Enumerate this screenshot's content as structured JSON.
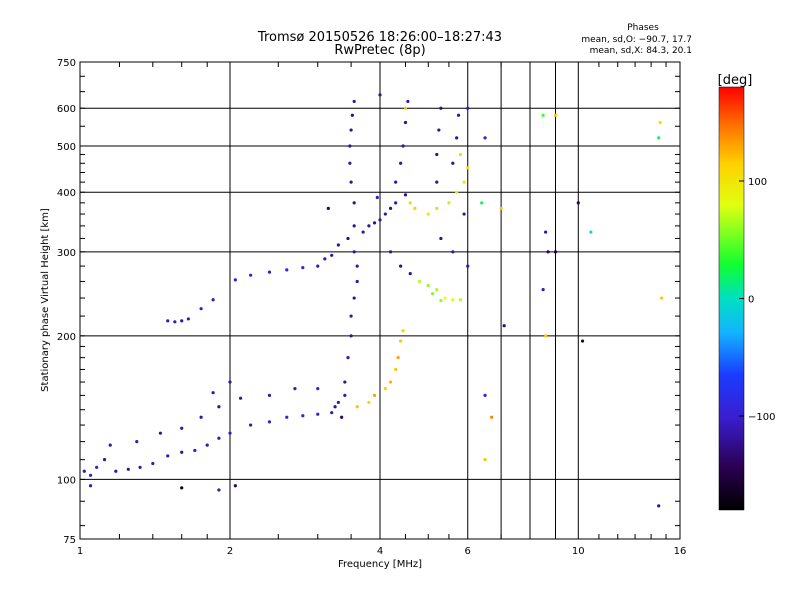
{
  "title_line1": "Tromsø 20150526 18:26:00–18:27:43",
  "title_line2": "RwPretec (8p)",
  "stats": {
    "heading": "Phases",
    "line_o": "mean, sd,O: −90.7, 17.7",
    "line_x": "mean, sd,X:  84.3, 20.1"
  },
  "colorbar": {
    "unit": "[deg]",
    "range": [
      -180,
      180
    ],
    "ticks": [
      {
        "value": 100,
        "label": "100"
      },
      {
        "value": 0,
        "label": "0"
      },
      {
        "value": -100,
        "label": "−100"
      }
    ]
  },
  "chart_data": {
    "type": "scatter",
    "xlabel": "Frequency [MHz]",
    "ylabel": "Stationary phase Virtual Height [km]",
    "xscale": "log",
    "yscale": "log",
    "xlim": [
      1,
      16
    ],
    "ylim": [
      75,
      750
    ],
    "grid": true,
    "color_encoding": "phase (deg)",
    "x_ticks": [
      {
        "value": 1,
        "label": "1"
      },
      {
        "value": 2,
        "label": "2"
      },
      {
        "value": 4,
        "label": "4"
      },
      {
        "value": 6,
        "label": "6"
      },
      {
        "value": 10,
        "label": "10"
      },
      {
        "value": 16,
        "label": "16"
      }
    ],
    "y_ticks": [
      {
        "value": 75,
        "label": "75"
      },
      {
        "value": 100,
        "label": "100"
      },
      {
        "value": 200,
        "label": "200"
      },
      {
        "value": 300,
        "label": "300"
      },
      {
        "value": 400,
        "label": "400"
      },
      {
        "value": 500,
        "label": "500"
      },
      {
        "value": 600,
        "label": "600"
      },
      {
        "value": 750,
        "label": "750"
      }
    ],
    "points": [
      {
        "x": 1.02,
        "y": 104,
        "p": -110
      },
      {
        "x": 1.05,
        "y": 102,
        "p": -105
      },
      {
        "x": 1.08,
        "y": 106,
        "p": -100
      },
      {
        "x": 1.12,
        "y": 110,
        "p": -120
      },
      {
        "x": 1.18,
        "y": 104,
        "p": -115
      },
      {
        "x": 1.25,
        "y": 105,
        "p": -118
      },
      {
        "x": 1.32,
        "y": 106,
        "p": -112
      },
      {
        "x": 1.4,
        "y": 108,
        "p": -110
      },
      {
        "x": 1.5,
        "y": 112,
        "p": -115
      },
      {
        "x": 1.6,
        "y": 114,
        "p": -120
      },
      {
        "x": 1.7,
        "y": 115,
        "p": -105
      },
      {
        "x": 1.8,
        "y": 118,
        "p": -110
      },
      {
        "x": 1.9,
        "y": 122,
        "p": -112
      },
      {
        "x": 2.0,
        "y": 125,
        "p": -110
      },
      {
        "x": 2.2,
        "y": 130,
        "p": -115
      },
      {
        "x": 2.4,
        "y": 132,
        "p": -100
      },
      {
        "x": 2.6,
        "y": 135,
        "p": -95
      },
      {
        "x": 2.8,
        "y": 136,
        "p": -98
      },
      {
        "x": 3.0,
        "y": 137,
        "p": -100
      },
      {
        "x": 3.2,
        "y": 138,
        "p": -110
      },
      {
        "x": 1.15,
        "y": 118,
        "p": -115
      },
      {
        "x": 1.3,
        "y": 120,
        "p": -110
      },
      {
        "x": 1.45,
        "y": 125,
        "p": -120
      },
      {
        "x": 1.6,
        "y": 128,
        "p": -115
      },
      {
        "x": 1.75,
        "y": 135,
        "p": -118
      },
      {
        "x": 1.9,
        "y": 142,
        "p": -120
      },
      {
        "x": 2.1,
        "y": 148,
        "p": -112
      },
      {
        "x": 2.4,
        "y": 150,
        "p": -110
      },
      {
        "x": 2.7,
        "y": 155,
        "p": -105
      },
      {
        "x": 3.0,
        "y": 155,
        "p": -100
      },
      {
        "x": 1.85,
        "y": 152,
        "p": -115
      },
      {
        "x": 2.0,
        "y": 160,
        "p": -118
      },
      {
        "x": 1.5,
        "y": 215,
        "p": -110
      },
      {
        "x": 1.55,
        "y": 214,
        "p": -112
      },
      {
        "x": 1.6,
        "y": 215,
        "p": -115
      },
      {
        "x": 1.65,
        "y": 217,
        "p": -108
      },
      {
        "x": 1.75,
        "y": 228,
        "p": -105
      },
      {
        "x": 1.85,
        "y": 238,
        "p": -110
      },
      {
        "x": 2.05,
        "y": 262,
        "p": -100
      },
      {
        "x": 2.2,
        "y": 268,
        "p": -98
      },
      {
        "x": 2.4,
        "y": 272,
        "p": -105
      },
      {
        "x": 2.6,
        "y": 275,
        "p": -100
      },
      {
        "x": 2.8,
        "y": 278,
        "p": -95
      },
      {
        "x": 3.0,
        "y": 280,
        "p": -110
      },
      {
        "x": 3.1,
        "y": 290,
        "p": -112
      },
      {
        "x": 3.2,
        "y": 295,
        "p": -118
      },
      {
        "x": 3.3,
        "y": 310,
        "p": -120
      },
      {
        "x": 3.45,
        "y": 320,
        "p": -125
      },
      {
        "x": 3.4,
        "y": 160,
        "p": -120
      },
      {
        "x": 3.45,
        "y": 180,
        "p": -115
      },
      {
        "x": 3.5,
        "y": 200,
        "p": -118
      },
      {
        "x": 3.5,
        "y": 220,
        "p": -112
      },
      {
        "x": 3.55,
        "y": 240,
        "p": -120
      },
      {
        "x": 3.6,
        "y": 260,
        "p": -115
      },
      {
        "x": 3.6,
        "y": 280,
        "p": -110
      },
      {
        "x": 3.55,
        "y": 300,
        "p": -118
      },
      {
        "x": 3.55,
        "y": 340,
        "p": -120
      },
      {
        "x": 3.55,
        "y": 380,
        "p": -122
      },
      {
        "x": 3.5,
        "y": 420,
        "p": -118
      },
      {
        "x": 3.48,
        "y": 460,
        "p": -115
      },
      {
        "x": 3.48,
        "y": 500,
        "p": -118
      },
      {
        "x": 3.5,
        "y": 540,
        "p": -120
      },
      {
        "x": 3.52,
        "y": 580,
        "p": -125
      },
      {
        "x": 3.55,
        "y": 620,
        "p": -120
      },
      {
        "x": 3.4,
        "y": 150,
        "p": -110
      },
      {
        "x": 3.3,
        "y": 145,
        "p": -115
      },
      {
        "x": 3.25,
        "y": 142,
        "p": -120
      },
      {
        "x": 3.7,
        "y": 330,
        "p": -115
      },
      {
        "x": 3.8,
        "y": 340,
        "p": -118
      },
      {
        "x": 3.9,
        "y": 345,
        "p": -120
      },
      {
        "x": 4.0,
        "y": 350,
        "p": -115
      },
      {
        "x": 4.1,
        "y": 360,
        "p": -118
      },
      {
        "x": 4.2,
        "y": 370,
        "p": -122
      },
      {
        "x": 3.95,
        "y": 390,
        "p": -110
      },
      {
        "x": 4.3,
        "y": 380,
        "p": -115
      },
      {
        "x": 4.5,
        "y": 395,
        "p": -120
      },
      {
        "x": 4.2,
        "y": 300,
        "p": -118
      },
      {
        "x": 4.4,
        "y": 280,
        "p": -125
      },
      {
        "x": 4.6,
        "y": 270,
        "p": -122
      },
      {
        "x": 4.3,
        "y": 420,
        "p": -115
      },
      {
        "x": 4.4,
        "y": 460,
        "p": -118
      },
      {
        "x": 4.45,
        "y": 500,
        "p": -120
      },
      {
        "x": 4.5,
        "y": 560,
        "p": -118
      },
      {
        "x": 4.55,
        "y": 620,
        "p": -115
      },
      {
        "x": 4.0,
        "y": 640,
        "p": -120
      },
      {
        "x": 3.6,
        "y": 142,
        "p": 120
      },
      {
        "x": 3.8,
        "y": 145,
        "p": 110
      },
      {
        "x": 3.9,
        "y": 150,
        "p": 130
      },
      {
        "x": 4.1,
        "y": 155,
        "p": 115
      },
      {
        "x": 4.2,
        "y": 160,
        "p": 125
      },
      {
        "x": 4.3,
        "y": 170,
        "p": 118
      },
      {
        "x": 4.35,
        "y": 180,
        "p": 130
      },
      {
        "x": 4.4,
        "y": 195,
        "p": 120
      },
      {
        "x": 4.45,
        "y": 205,
        "p": 115
      },
      {
        "x": 4.5,
        "y": 600,
        "p": 120
      },
      {
        "x": 4.6,
        "y": 380,
        "p": 110
      },
      {
        "x": 4.7,
        "y": 370,
        "p": 115
      },
      {
        "x": 5.0,
        "y": 360,
        "p": 100
      },
      {
        "x": 5.2,
        "y": 370,
        "p": 110
      },
      {
        "x": 5.5,
        "y": 380,
        "p": 105
      },
      {
        "x": 5.7,
        "y": 400,
        "p": 95
      },
      {
        "x": 5.9,
        "y": 420,
        "p": 100
      },
      {
        "x": 6.0,
        "y": 450,
        "p": 110
      },
      {
        "x": 5.8,
        "y": 480,
        "p": 105
      },
      {
        "x": 4.8,
        "y": 260,
        "p": 70
      },
      {
        "x": 5.0,
        "y": 255,
        "p": 60
      },
      {
        "x": 5.2,
        "y": 250,
        "p": 65
      },
      {
        "x": 5.4,
        "y": 240,
        "p": 80
      },
      {
        "x": 5.6,
        "y": 238,
        "p": 75
      },
      {
        "x": 5.8,
        "y": 238,
        "p": 70
      },
      {
        "x": 5.1,
        "y": 245,
        "p": 55
      },
      {
        "x": 5.3,
        "y": 237,
        "p": 60
      },
      {
        "x": 5.2,
        "y": 420,
        "p": -120
      },
      {
        "x": 5.2,
        "y": 480,
        "p": -118
      },
      {
        "x": 5.25,
        "y": 540,
        "p": -122
      },
      {
        "x": 5.3,
        "y": 600,
        "p": -125
      },
      {
        "x": 5.6,
        "y": 460,
        "p": -120
      },
      {
        "x": 5.7,
        "y": 520,
        "p": -118
      },
      {
        "x": 5.75,
        "y": 580,
        "p": -115
      },
      {
        "x": 5.9,
        "y": 360,
        "p": -118
      },
      {
        "x": 5.3,
        "y": 320,
        "p": -120
      },
      {
        "x": 5.6,
        "y": 300,
        "p": -118
      },
      {
        "x": 6.0,
        "y": 280,
        "p": -115
      },
      {
        "x": 6.0,
        "y": 600,
        "p": -110
      },
      {
        "x": 6.5,
        "y": 520,
        "p": -100
      },
      {
        "x": 6.4,
        "y": 380,
        "p": 20
      },
      {
        "x": 7.0,
        "y": 370,
        "p": 120
      },
      {
        "x": 6.5,
        "y": 150,
        "p": -95
      },
      {
        "x": 6.7,
        "y": 135,
        "p": 140
      },
      {
        "x": 6.5,
        "y": 110,
        "p": 120
      },
      {
        "x": 7.1,
        "y": 210,
        "p": -130
      },
      {
        "x": 8.5,
        "y": 580,
        "p": 40
      },
      {
        "x": 8.6,
        "y": 330,
        "p": -115
      },
      {
        "x": 8.7,
        "y": 300,
        "p": -140
      },
      {
        "x": 9.0,
        "y": 300,
        "p": -150
      },
      {
        "x": 8.6,
        "y": 200,
        "p": 120
      },
      {
        "x": 9.0,
        "y": 580,
        "p": 120
      },
      {
        "x": 10.0,
        "y": 380,
        "p": -140
      },
      {
        "x": 10.2,
        "y": 195,
        "p": -150
      },
      {
        "x": 10.6,
        "y": 330,
        "p": 0
      },
      {
        "x": 8.5,
        "y": 250,
        "p": -110
      },
      {
        "x": 14.5,
        "y": 520,
        "p": 20
      },
      {
        "x": 14.6,
        "y": 560,
        "p": 110
      },
      {
        "x": 14.7,
        "y": 240,
        "p": 120
      },
      {
        "x": 14.5,
        "y": 88,
        "p": -120
      },
      {
        "x": 1.6,
        "y": 96,
        "p": -170
      },
      {
        "x": 2.05,
        "y": 97,
        "p": -140
      },
      {
        "x": 1.9,
        "y": 95,
        "p": -110
      },
      {
        "x": 1.05,
        "y": 97,
        "p": -110
      },
      {
        "x": 3.35,
        "y": 135,
        "p": -140
      },
      {
        "x": 3.15,
        "y": 370,
        "p": -140
      }
    ]
  }
}
